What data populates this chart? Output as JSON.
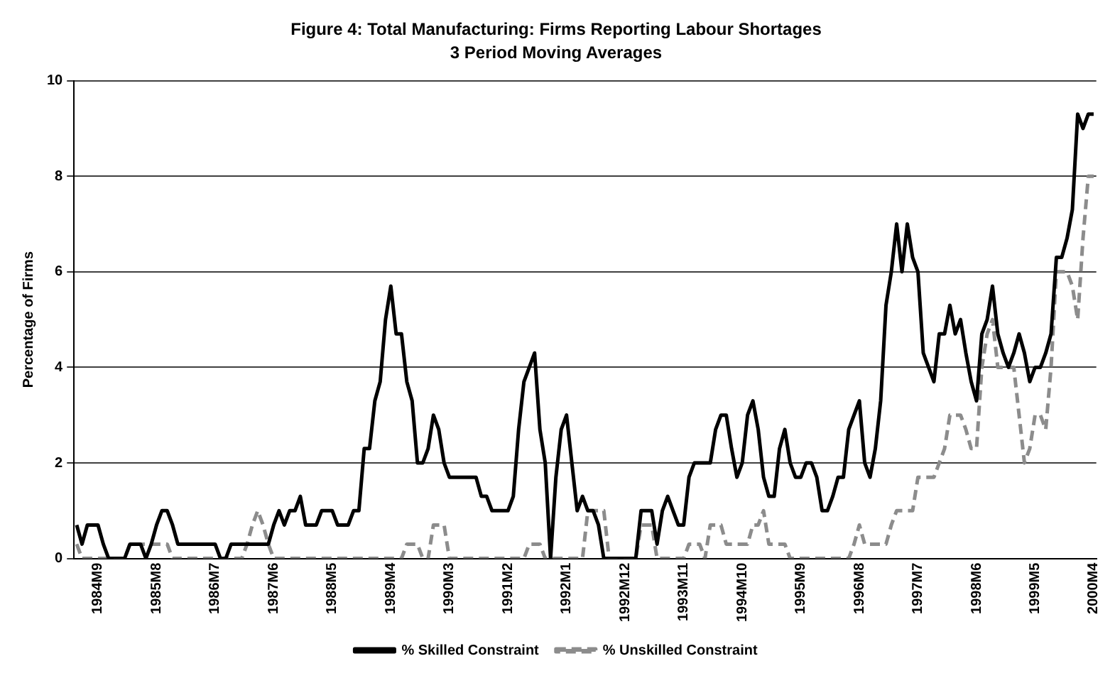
{
  "chart_data": {
    "type": "line",
    "title": "Figure 4: Total Manufacturing: Firms Reporting Labour Shortages",
    "subtitle": "3 Period Moving Averages",
    "ylabel": "Percentage of Firms",
    "categories": [
      null,
      null,
      null,
      null,
      "1984M9",
      null,
      null,
      null,
      null,
      null,
      null,
      null,
      null,
      null,
      null,
      "1985M8",
      null,
      null,
      null,
      null,
      null,
      null,
      null,
      null,
      null,
      null,
      "1986M7",
      null,
      null,
      null,
      null,
      null,
      null,
      null,
      null,
      null,
      null,
      "1987M6",
      null,
      null,
      null,
      null,
      null,
      null,
      null,
      null,
      null,
      null,
      "1988M5",
      null,
      null,
      null,
      null,
      null,
      null,
      null,
      null,
      null,
      null,
      "1989M4",
      null,
      null,
      null,
      null,
      null,
      null,
      null,
      null,
      null,
      null,
      "1990M3",
      null,
      null,
      null,
      null,
      null,
      null,
      null,
      null,
      null,
      null,
      "1991M2",
      null,
      null,
      null,
      null,
      null,
      null,
      null,
      null,
      null,
      null,
      "1992M1",
      null,
      null,
      null,
      null,
      null,
      null,
      null,
      null,
      null,
      null,
      "1992M12",
      null,
      null,
      null,
      null,
      null,
      null,
      null,
      null,
      null,
      null,
      "1993M11",
      null,
      null,
      null,
      null,
      null,
      null,
      null,
      null,
      null,
      null,
      "1994M10",
      null,
      null,
      null,
      null,
      null,
      null,
      null,
      null,
      null,
      null,
      "1995M9",
      null,
      null,
      null,
      null,
      null,
      null,
      null,
      null,
      null,
      null,
      "1996M8",
      null,
      null,
      null,
      null,
      null,
      null,
      null,
      null,
      null,
      null,
      "1997M7",
      null,
      null,
      null,
      null,
      null,
      null,
      null,
      null,
      null,
      null,
      "1998M6",
      null,
      null,
      null,
      null,
      null,
      null,
      null,
      null,
      null,
      null,
      "1999M5",
      null,
      null,
      null,
      null,
      null,
      null,
      null,
      null,
      null,
      null,
      "2000M4"
    ],
    "series": [
      {
        "name": "% Skilled Constraint",
        "color": "#000000",
        "line_style": "solid",
        "values": [
          0.7,
          0.3,
          0.7,
          0.7,
          0.7,
          0.3,
          0,
          0,
          0,
          0,
          0.3,
          0.3,
          0.3,
          0,
          0.3,
          0.7,
          1,
          1,
          0.7,
          0.3,
          0.3,
          0.3,
          0.3,
          0.3,
          0.3,
          0.3,
          0.3,
          0,
          0,
          0.3,
          0.3,
          0.3,
          0.3,
          0.3,
          0.3,
          0.3,
          0.3,
          0.7,
          1,
          0.7,
          1,
          1,
          1.3,
          0.7,
          0.7,
          0.7,
          1,
          1,
          1,
          0.7,
          0.7,
          0.7,
          1,
          1,
          2.3,
          2.3,
          3.3,
          3.7,
          5,
          5.7,
          4.7,
          4.7,
          3.7,
          3.3,
          2,
          2,
          2.3,
          3,
          2.7,
          2,
          1.7,
          1.7,
          1.7,
          1.7,
          1.7,
          1.7,
          1.3,
          1.3,
          1,
          1,
          1,
          1,
          1.3,
          2.7,
          3.7,
          4,
          4.3,
          2.7,
          2,
          0,
          1.7,
          2.7,
          3,
          2,
          1,
          1.3,
          1,
          1,
          0.7,
          0,
          0,
          0,
          0,
          0,
          0,
          0,
          1,
          1,
          1,
          0.3,
          1,
          1.3,
          1,
          0.7,
          0.7,
          1.7,
          2,
          2,
          2,
          2,
          2.7,
          3,
          3,
          2.3,
          1.7,
          2,
          3,
          3.3,
          2.7,
          1.7,
          1.3,
          1.3,
          2.3,
          2.7,
          2,
          1.7,
          1.7,
          2,
          2,
          1.7,
          1,
          1,
          1.3,
          1.7,
          1.7,
          2.7,
          3,
          3.3,
          2,
          1.7,
          2.3,
          3.3,
          5.3,
          6,
          7,
          6,
          7,
          6.3,
          6,
          4.3,
          4,
          3.7,
          4.7,
          4.7,
          5.3,
          4.7,
          5,
          4.3,
          3.7,
          3.3,
          4.7,
          5,
          5.7,
          4.7,
          4.3,
          4,
          4.3,
          4.7,
          4.3,
          3.7,
          4,
          4,
          4.3,
          4.7,
          6.3,
          6.3,
          6.7,
          7.3,
          9.3,
          9,
          9.3,
          9.3
        ]
      },
      {
        "name": "% Unskilled Constraint",
        "color": "#8c8c8c",
        "line_style": "dashed",
        "values": [
          0.3,
          0,
          0,
          0,
          0,
          0,
          0,
          0,
          0,
          0,
          0.3,
          0.3,
          0.3,
          0.3,
          0.3,
          0.3,
          0.3,
          0.3,
          0,
          0,
          0,
          0,
          0,
          0,
          0,
          0,
          0,
          0,
          0,
          0,
          0,
          0,
          0.3,
          0.7,
          1,
          0.7,
          0.3,
          0,
          0,
          0,
          0,
          0,
          0,
          0,
          0,
          0,
          0,
          0,
          0,
          0,
          0,
          0,
          0,
          0,
          0,
          0,
          0,
          0,
          0,
          0,
          0,
          0,
          0.3,
          0.3,
          0.3,
          0,
          0,
          0.7,
          0.7,
          0.7,
          0,
          0,
          0,
          0,
          0,
          0,
          0,
          0,
          0,
          0,
          0,
          0,
          0,
          0,
          0,
          0.3,
          0.3,
          0.3,
          0,
          0,
          0,
          0,
          0,
          0,
          0,
          0,
          1,
          1,
          1,
          1,
          0,
          0,
          0,
          0,
          0,
          0,
          0.7,
          0.7,
          0.7,
          0,
          0,
          0,
          0,
          0,
          0,
          0.3,
          0.3,
          0.3,
          0,
          0.7,
          0.7,
          0.7,
          0.3,
          0.3,
          0.3,
          0.3,
          0.3,
          0.7,
          0.7,
          1,
          0.3,
          0.3,
          0.3,
          0.3,
          0,
          0,
          0,
          0,
          0,
          0,
          0,
          0,
          0,
          0,
          0,
          0,
          0.3,
          0.7,
          0.3,
          0.3,
          0.3,
          0.3,
          0.3,
          0.7,
          1,
          1,
          1,
          1,
          1.7,
          1.7,
          1.7,
          1.7,
          2,
          2.3,
          3,
          3,
          3,
          2.7,
          2.3,
          2.3,
          4,
          4.7,
          5,
          4,
          4,
          4,
          4,
          3,
          2,
          2.3,
          3,
          3,
          2.7,
          4,
          6,
          6,
          6,
          5.7,
          5,
          6.7,
          8,
          8
        ]
      }
    ],
    "ylim": [
      0,
      10
    ],
    "yticks": [
      0,
      2,
      4,
      6,
      8,
      10
    ],
    "grid": "y",
    "legend": "bottom",
    "marker": "none"
  }
}
